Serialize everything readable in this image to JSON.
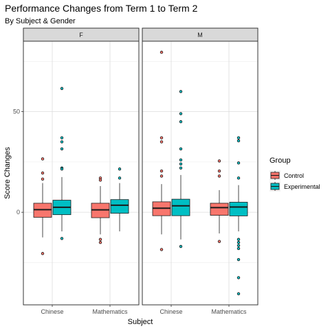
{
  "chart_data": {
    "type": "boxplot",
    "title": "Performance Changes from Term 1 to Term 2",
    "subtitle": "By Subject & Gender",
    "xlabel": "Subject",
    "ylabel": "Score Changes",
    "ylim": [
      -46,
      85
    ],
    "yticks": [
      0,
      50
    ],
    "grid": true,
    "facets": [
      "F",
      "M"
    ],
    "categories": [
      "Chinese",
      "Mathematics"
    ],
    "legend": {
      "title": "Group",
      "position": "right",
      "entries": [
        {
          "name": "Control",
          "color": "#F8766D"
        },
        {
          "name": "Experimental",
          "color": "#00BFC4"
        }
      ]
    },
    "boxes": [
      {
        "facet": "F",
        "category": "Chinese",
        "group": "Control",
        "q1": -2.5,
        "median": 1.3,
        "q3": 4.5,
        "whisker_low": -12.5,
        "whisker_high": 14.5,
        "outliers": [
          26.5,
          19.5,
          16.5,
          -20.5
        ]
      },
      {
        "facet": "F",
        "category": "Chinese",
        "group": "Experimental",
        "q1": -1.2,
        "median": 2.5,
        "q3": 6.0,
        "whisker_low": -9.5,
        "whisker_high": 17.5,
        "outliers": [
          61.5,
          37.0,
          35.0,
          31.5,
          22.0,
          21.5,
          -13.0
        ]
      },
      {
        "facet": "F",
        "category": "Mathematics",
        "group": "Control",
        "q1": -2.7,
        "median": 1.2,
        "q3": 4.5,
        "whisker_low": -11.0,
        "whisker_high": 13.0,
        "outliers": [
          17.0,
          16.0,
          -13.5,
          -15.0
        ]
      },
      {
        "facet": "F",
        "category": "Mathematics",
        "group": "Experimental",
        "q1": -0.5,
        "median": 3.5,
        "q3": 6.3,
        "whisker_low": -9.5,
        "whisker_high": 14.5,
        "outliers": [
          21.5,
          17.0
        ]
      },
      {
        "facet": "M",
        "category": "Chinese",
        "group": "Control",
        "q1": -1.7,
        "median": 2.0,
        "q3": 5.2,
        "whisker_low": -11.0,
        "whisker_high": 14.0,
        "outliers": [
          79.5,
          37.0,
          35.0,
          20.5,
          18.0,
          -18.5
        ]
      },
      {
        "facet": "M",
        "category": "Chinese",
        "group": "Experimental",
        "q1": -1.7,
        "median": 3.2,
        "q3": 6.5,
        "whisker_low": -13.5,
        "whisker_high": 18.5,
        "outliers": [
          60.0,
          49.0,
          45.0,
          31.5,
          26.0,
          24.0,
          22.0,
          -17.0
        ]
      },
      {
        "facet": "M",
        "category": "Mathematics",
        "group": "Control",
        "q1": -1.5,
        "median": 2.3,
        "q3": 4.5,
        "whisker_low": -10.5,
        "whisker_high": 11.0,
        "outliers": [
          25.5,
          20.5,
          18.0,
          -14.5
        ]
      },
      {
        "facet": "M",
        "category": "Mathematics",
        "group": "Experimental",
        "q1": -1.8,
        "median": 2.6,
        "q3": 5.0,
        "whisker_low": -9.5,
        "whisker_high": 13.5,
        "outliers": [
          37.0,
          35.5,
          24.5,
          17.0,
          -13.5,
          -15.0,
          -16.5,
          -18.0,
          -23.5,
          -32.5,
          -40.5
        ]
      }
    ]
  }
}
